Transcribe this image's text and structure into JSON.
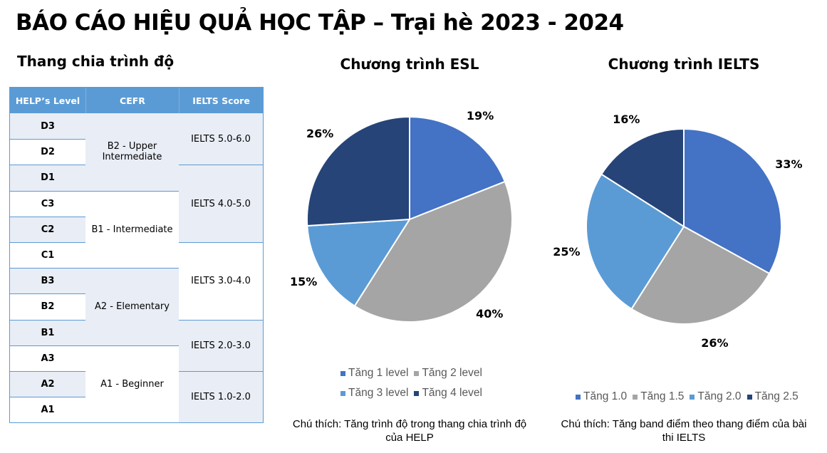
{
  "title": "BÁO CÁO HIỆU QUẢ HỌC TẬP – Trại hè 2023 - 2024",
  "table": {
    "subtitle": "Thang chia trình độ",
    "headers": [
      "HELP’s Level",
      "CEFR",
      "IELTS Score"
    ],
    "levels": [
      "D3",
      "D2",
      "D1",
      "C3",
      "C2",
      "C1",
      "B3",
      "B2",
      "B1",
      "A3",
      "A2",
      "A1"
    ],
    "cefr": [
      {
        "label": "B2 - Upper Intermediate",
        "rows": 3
      },
      {
        "label": "B1 - Intermediate",
        "rows": 3
      },
      {
        "label": "A2 - Elementary",
        "rows": 3
      },
      {
        "label": "A1 - Beginner",
        "rows": 3
      }
    ],
    "ielts": [
      {
        "label": "IELTS 5.0-6.0",
        "rows": 2
      },
      {
        "label": "IELTS 4.0-5.0",
        "rows": 3
      },
      {
        "label": "IELTS 3.0-4.0",
        "rows": 3
      },
      {
        "label": "IELTS 2.0-3.0",
        "rows": 2
      },
      {
        "label": "IELTS 1.0-2.0",
        "rows": 2
      }
    ]
  },
  "chart_data": [
    {
      "type": "pie",
      "title": "Chương trình ESL",
      "categories": [
        "Tăng 1 level",
        "Tăng 2 level",
        "Tăng 3 level",
        "Tăng 4 level"
      ],
      "values": [
        19,
        40,
        15,
        26
      ],
      "labels": [
        "19%",
        "40%",
        "15%",
        "26%"
      ],
      "colors": [
        "#4472C4",
        "#A5A5A5",
        "#5B9BD5",
        "#264478"
      ],
      "legend": "bottom",
      "note": "Chú thích: Tăng trình độ trong thang chia trình độ của HELP"
    },
    {
      "type": "pie",
      "title": "Chương trình IELTS",
      "categories": [
        "Tăng 1.0",
        "Tăng 1.5",
        "Tăng 2.0",
        "Tăng 2.5"
      ],
      "values": [
        33,
        26,
        25,
        16
      ],
      "labels": [
        "33%",
        "26%",
        "25%",
        "16%"
      ],
      "colors": [
        "#4472C4",
        "#A5A5A5",
        "#5B9BD5",
        "#264478"
      ],
      "legend": "bottom",
      "note": "Chú thích: Tăng band điểm theo thang điểm của bài thi IELTS"
    }
  ]
}
